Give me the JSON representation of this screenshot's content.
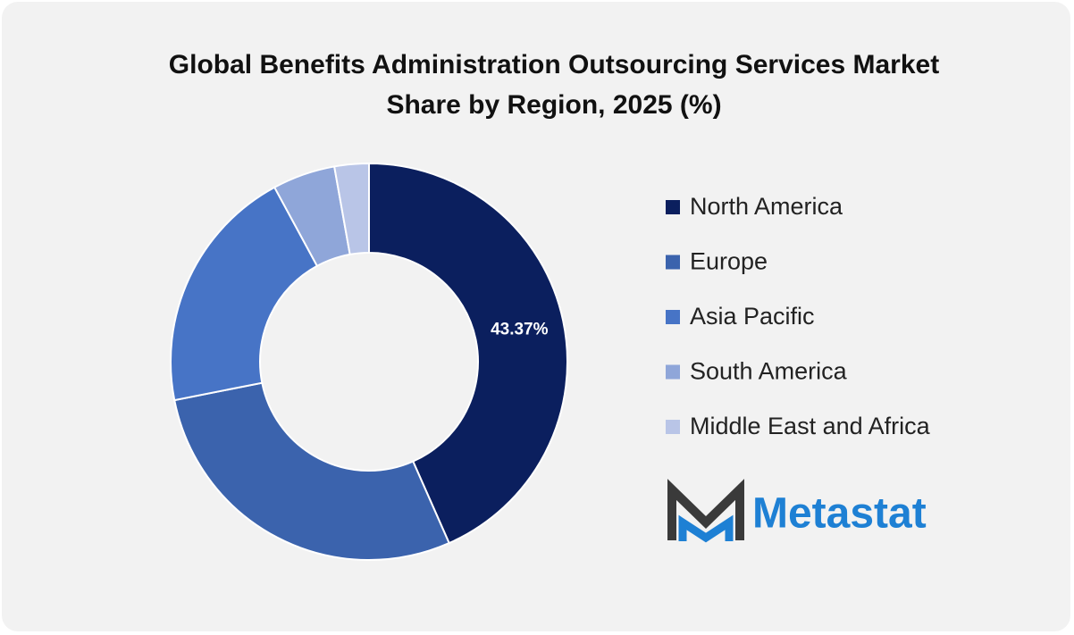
{
  "chart_data": {
    "type": "donut",
    "title": "Global Benefits Administration Outsourcing Services Market Share by Region, 2025 (%)",
    "categories": [
      "North America",
      "Europe",
      "Asia Pacific",
      "South America",
      "Middle East and Africa"
    ],
    "values": [
      43.37,
      28.5,
      20.2,
      5.1,
      2.8
    ],
    "value_labels": [
      "43.37%",
      null,
      null,
      null,
      null
    ],
    "colors": [
      "#0b1f5e",
      "#3b63ad",
      "#4774c6",
      "#8fa6d9",
      "#b9c5e7"
    ],
    "legend": "right"
  },
  "brand": "Metastat"
}
